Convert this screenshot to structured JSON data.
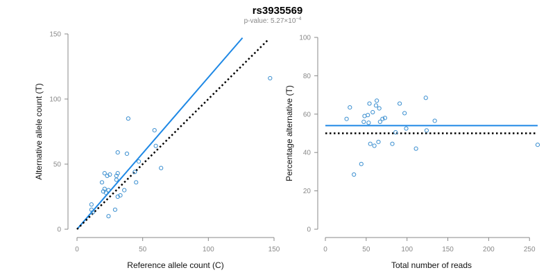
{
  "title": "rs3935569",
  "subtitle_prefix": "p-value: 5.27×10",
  "subtitle_exponent": "−4",
  "colors": {
    "points": "#3b8fd0",
    "fit_line": "#1e88e5",
    "reference_line": "#000000",
    "axis": "#888888"
  },
  "chart_data": [
    {
      "type": "scatter",
      "xlabel": "Reference allele count (C)",
      "ylabel": "Alternative allele count (T)",
      "xlim": [
        0,
        150
      ],
      "ylim": [
        0,
        150
      ],
      "xticks": [
        0,
        50,
        100,
        150
      ],
      "yticks": [
        0,
        50,
        100,
        150
      ],
      "grid": false,
      "points": [
        {
          "x": 11,
          "y": 19
        },
        {
          "x": 11,
          "y": 15
        },
        {
          "x": 12,
          "y": 13
        },
        {
          "x": 19,
          "y": 36
        },
        {
          "x": 20,
          "y": 29
        },
        {
          "x": 21,
          "y": 31
        },
        {
          "x": 21,
          "y": 43
        },
        {
          "x": 22,
          "y": 28
        },
        {
          "x": 23,
          "y": 41
        },
        {
          "x": 24,
          "y": 30
        },
        {
          "x": 25,
          "y": 42
        },
        {
          "x": 24,
          "y": 10
        },
        {
          "x": 29,
          "y": 15
        },
        {
          "x": 30,
          "y": 38
        },
        {
          "x": 30,
          "y": 41
        },
        {
          "x": 31,
          "y": 43
        },
        {
          "x": 31,
          "y": 59
        },
        {
          "x": 31,
          "y": 25
        },
        {
          "x": 33,
          "y": 26
        },
        {
          "x": 36,
          "y": 30
        },
        {
          "x": 38,
          "y": 58
        },
        {
          "x": 39,
          "y": 85
        },
        {
          "x": 44,
          "y": 44
        },
        {
          "x": 45,
          "y": 36
        },
        {
          "x": 47,
          "y": 52
        },
        {
          "x": 59,
          "y": 76
        },
        {
          "x": 60,
          "y": 64
        },
        {
          "x": 64,
          "y": 47
        },
        {
          "x": 147,
          "y": 116
        }
      ],
      "lines": [
        {
          "kind": "fit",
          "x": [
            0,
            126
          ],
          "y": [
            0,
            147
          ]
        },
        {
          "kind": "reference",
          "x": [
            0,
            146
          ],
          "y": [
            0,
            146
          ]
        }
      ]
    },
    {
      "type": "scatter",
      "xlabel": "Total number of reads",
      "ylabel": "Percentage alternative (T)",
      "xlim": [
        0,
        260
      ],
      "ylim": [
        0,
        100
      ],
      "xticks": [
        0,
        50,
        100,
        150,
        200,
        250
      ],
      "yticks": [
        0,
        20,
        40,
        60,
        80,
        100
      ],
      "grid": false,
      "points": [
        {
          "x": 26,
          "y": 57.5
        },
        {
          "x": 30,
          "y": 63.5
        },
        {
          "x": 35,
          "y": 28.5
        },
        {
          "x": 44,
          "y": 34
        },
        {
          "x": 47,
          "y": 56
        },
        {
          "x": 48,
          "y": 59
        },
        {
          "x": 52,
          "y": 59.5
        },
        {
          "x": 53,
          "y": 55.5
        },
        {
          "x": 54,
          "y": 65.5
        },
        {
          "x": 55,
          "y": 44.5
        },
        {
          "x": 58,
          "y": 61
        },
        {
          "x": 60,
          "y": 43.5
        },
        {
          "x": 62,
          "y": 64.5
        },
        {
          "x": 63,
          "y": 67
        },
        {
          "x": 65,
          "y": 45.5
        },
        {
          "x": 66,
          "y": 63
        },
        {
          "x": 67,
          "y": 56
        },
        {
          "x": 70,
          "y": 57.5
        },
        {
          "x": 73,
          "y": 58
        },
        {
          "x": 82,
          "y": 44.5
        },
        {
          "x": 86,
          "y": 50.5
        },
        {
          "x": 91,
          "y": 65.5
        },
        {
          "x": 97,
          "y": 60.5
        },
        {
          "x": 99,
          "y": 52.5
        },
        {
          "x": 111,
          "y": 42
        },
        {
          "x": 123,
          "y": 68.5
        },
        {
          "x": 124,
          "y": 51.5
        },
        {
          "x": 134,
          "y": 56.5
        },
        {
          "x": 260,
          "y": 44
        }
      ],
      "lines": [
        {
          "kind": "fit",
          "x": [
            0,
            260
          ],
          "y": [
            54,
            54
          ]
        },
        {
          "kind": "reference",
          "x": [
            0,
            260
          ],
          "y": [
            50,
            50
          ]
        }
      ]
    }
  ]
}
